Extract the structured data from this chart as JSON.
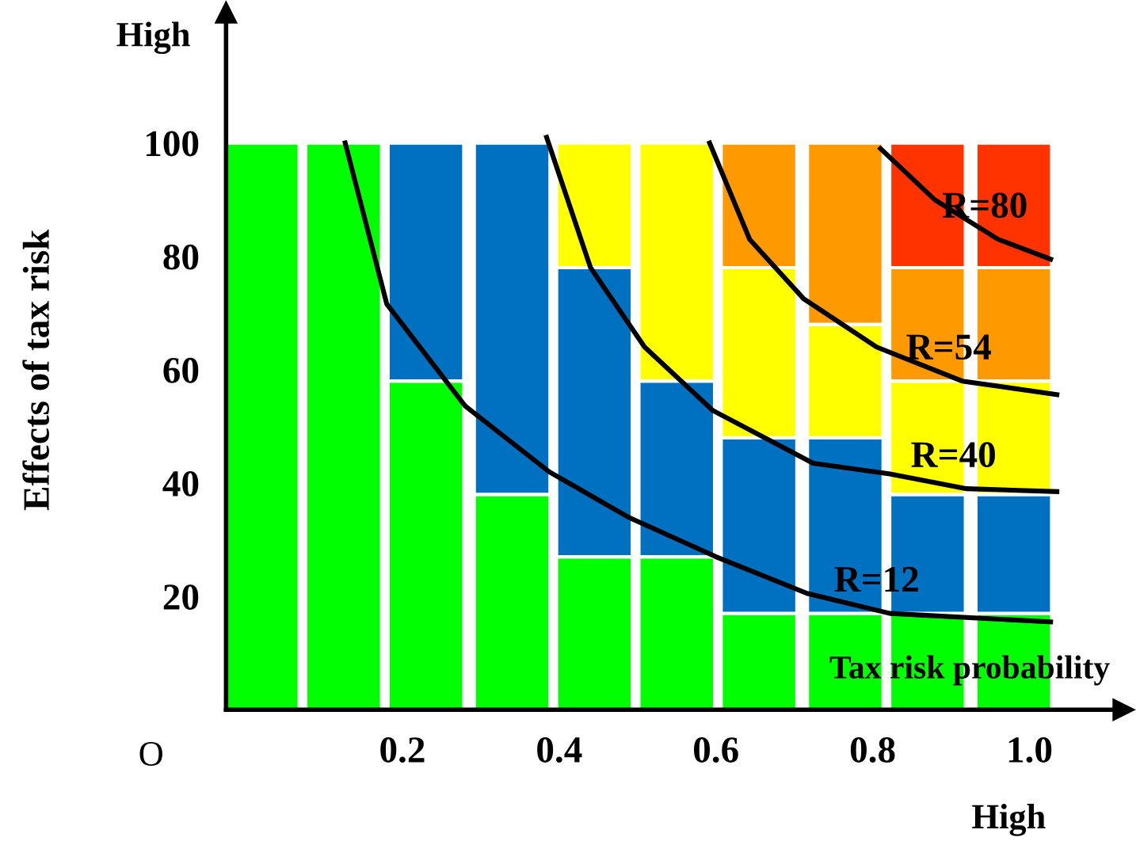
{
  "chart_data": {
    "type": "bar",
    "stacked": true,
    "xlabel": "Tax risk probability",
    "ylabel": "Effects of tax risk",
    "x": [
      0.02,
      0.125,
      0.23,
      0.34,
      0.445,
      0.55,
      0.655,
      0.765,
      0.87,
      0.98
    ],
    "xlim": [
      -0.025,
      1.12
    ],
    "ylim": [
      0,
      123
    ],
    "xticks": [
      0.2,
      0.4,
      0.6,
      0.8,
      {
        "value": 1.0,
        "label": "1.0"
      }
    ],
    "yticks": [
      20,
      40,
      60,
      80,
      100
    ],
    "grid": false,
    "series": [
      {
        "color": "#00ff00",
        "values": [
          100,
          100,
          58,
          38,
          27,
          27,
          17,
          17,
          17,
          17
        ]
      },
      {
        "color": "#0070c0",
        "values": [
          null,
          null,
          42,
          62,
          51,
          31,
          31,
          31,
          21,
          21
        ]
      },
      {
        "color": "#ffff00",
        "values": [
          null,
          null,
          null,
          null,
          22,
          42,
          30,
          20,
          20,
          20
        ]
      },
      {
        "color": "#ff9900",
        "values": [
          null,
          null,
          null,
          null,
          null,
          null,
          22,
          32,
          20,
          20
        ]
      },
      {
        "color": "#ff3300",
        "values": [
          null,
          null,
          null,
          null,
          null,
          null,
          null,
          null,
          22,
          22
        ]
      },
      {
        "type": "line",
        "name": "R=12",
        "color": "#000000",
        "x": [
          0.127,
          0.18,
          0.28,
          0.387,
          0.488,
          0.6,
          0.717,
          0.822,
          1.027
        ],
        "values": [
          100,
          71.6,
          53.6,
          42,
          34,
          27,
          20.5,
          17,
          15.5
        ]
      },
      {
        "type": "line",
        "name": "R=40",
        "color": "#000000",
        "x": [
          0.384,
          0.44,
          0.509,
          0.596,
          0.724,
          0.822,
          0.92,
          1.035
        ],
        "values": [
          101,
          78,
          64,
          52.8,
          43.5,
          41.6,
          39,
          38.5
        ]
      },
      {
        "type": "line",
        "name": "R=54",
        "color": "#000000",
        "x": [
          0.592,
          0.643,
          0.712,
          0.805,
          0.914,
          1.035
        ],
        "values": [
          100,
          83,
          72.5,
          64,
          58,
          55.6
        ]
      },
      {
        "type": "line",
        "name": "R=80",
        "color": "#000000",
        "x": [
          0.81,
          0.879,
          0.96,
          1.027
        ],
        "values": [
          99,
          90,
          83,
          79.5
        ]
      }
    ],
    "annotations": [
      "High",
      "High",
      "O"
    ]
  }
}
